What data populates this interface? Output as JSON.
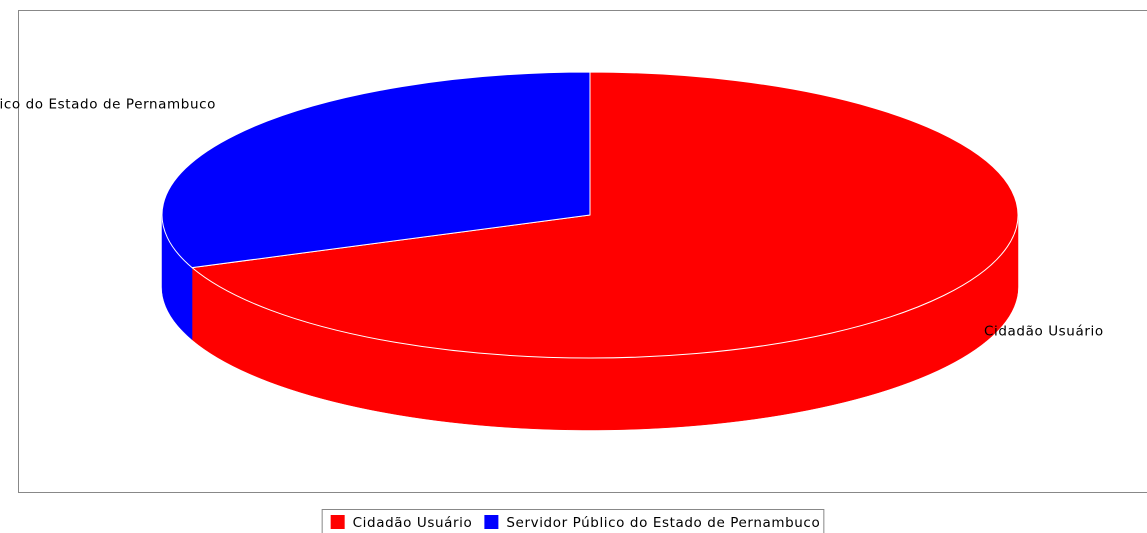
{
  "chart_data": {
    "type": "pie",
    "categories": [
      "Cidadão Usuário",
      "Servidor Público do Estado de Pernambuco"
    ],
    "values": [
      69,
      31
    ],
    "colors": [
      "#ff0000",
      "#0000ff"
    ],
    "legend": "bottom"
  }
}
